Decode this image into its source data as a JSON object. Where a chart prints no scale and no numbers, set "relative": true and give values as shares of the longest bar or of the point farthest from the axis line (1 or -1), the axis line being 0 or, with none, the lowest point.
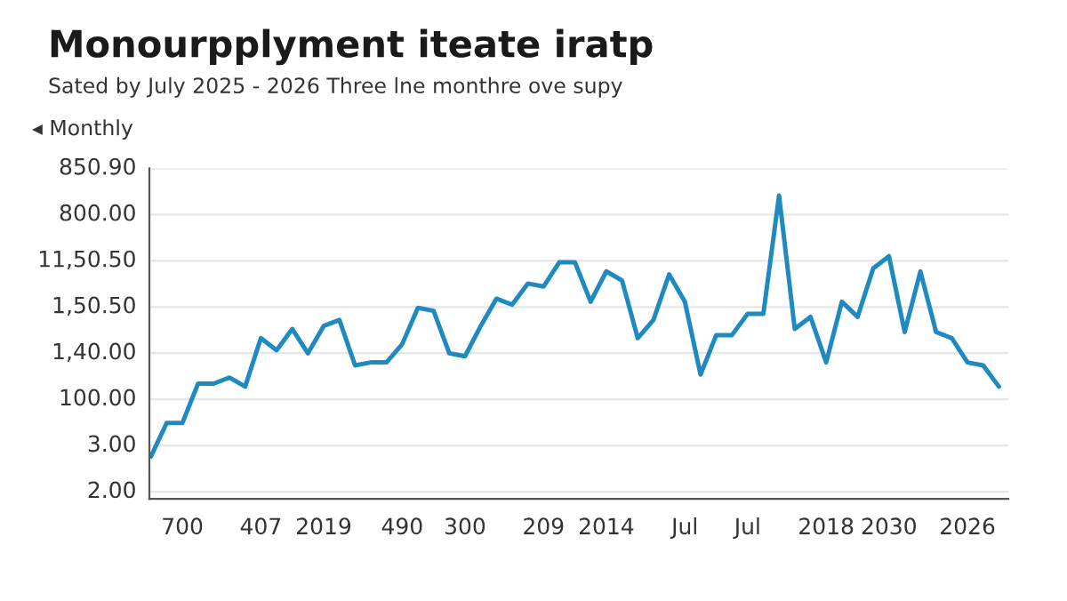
{
  "chart_data": {
    "type": "line",
    "relative": true,
    "title": "Monourpplyment iteate iratp",
    "subtitle": "Sated by July 2025 - 2026 Three lne monthre ove supy",
    "annotations": [
      "2.00",
      "3.00",
      "100.00",
      "1,40.00",
      "1,50.50",
      "11,50.50",
      "800.00",
      "850.90",
      "◂ Monthly"
    ],
    "categories": [
      null,
      null,
      "700",
      null,
      null,
      null,
      null,
      "407",
      null,
      null,
      null,
      "2019",
      null,
      null,
      null,
      null,
      "490",
      null,
      null,
      null,
      "300",
      null,
      null,
      null,
      null,
      "209",
      null,
      null,
      null,
      "2014",
      null,
      null,
      null,
      null,
      "Jul",
      null,
      null,
      null,
      "Jul",
      null,
      null,
      null,
      null,
      "2018",
      null,
      null,
      null,
      "2030",
      null,
      null,
      null,
      null,
      "2026",
      null,
      null
    ],
    "series": [
      {
        "color": "#1f8ac0",
        "values": [
          0.14,
          0.25,
          0.25,
          0.38,
          0.38,
          0.4,
          0.37,
          0.53,
          0.49,
          0.56,
          0.48,
          0.57,
          0.59,
          0.44,
          0.45,
          0.45,
          0.51,
          0.63,
          0.62,
          0.48,
          0.47,
          0.57,
          0.66,
          0.64,
          0.71,
          0.7,
          0.78,
          0.78,
          0.65,
          0.75,
          0.72,
          0.53,
          0.59,
          0.74,
          0.65,
          0.41,
          0.54,
          0.54,
          0.61,
          0.61,
          1,
          0.56,
          0.6,
          0.45,
          0.65,
          0.6,
          0.76,
          0.8,
          0.55,
          0.75,
          0.55,
          0.53,
          0.45,
          0.44,
          0.37
        ]
      }
    ],
    "grid": "y",
    "marker": "none",
    "line_style": "solid"
  }
}
